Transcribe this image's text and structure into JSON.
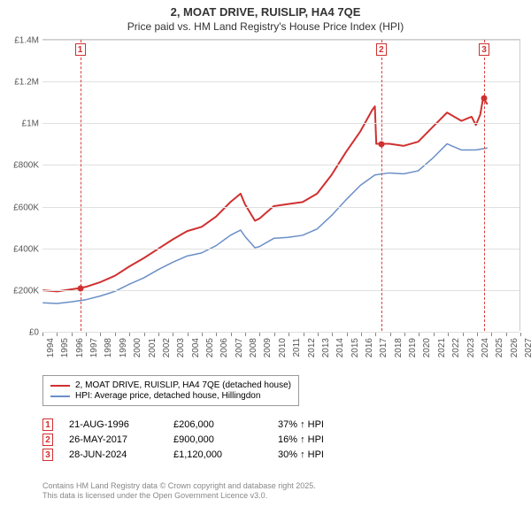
{
  "title": {
    "main": "2, MOAT DRIVE, RUISLIP, HA4 7QE",
    "sub": "Price paid vs. HM Land Registry's House Price Index (HPI)"
  },
  "chart": {
    "type": "line",
    "background_color": "#ffffff",
    "grid_color": "#e0e0e0",
    "border_color": "#cccccc",
    "y_axis": {
      "min": 0,
      "max": 1400000,
      "ticks": [
        {
          "v": 0,
          "label": "£0"
        },
        {
          "v": 200000,
          "label": "£200K"
        },
        {
          "v": 400000,
          "label": "£400K"
        },
        {
          "v": 600000,
          "label": "£600K"
        },
        {
          "v": 800000,
          "label": "£800K"
        },
        {
          "v": 1000000,
          "label": "£1M"
        },
        {
          "v": 1200000,
          "label": "£1.2M"
        },
        {
          "v": 1400000,
          "label": "£1.4M"
        }
      ],
      "label_fontsize": 10,
      "label_color": "#555555"
    },
    "x_axis": {
      "min": 1994,
      "max": 2027,
      "ticks": [
        1994,
        1995,
        1996,
        1997,
        1998,
        1999,
        2000,
        2001,
        2002,
        2003,
        2004,
        2005,
        2006,
        2007,
        2008,
        2009,
        2010,
        2011,
        2012,
        2013,
        2014,
        2015,
        2016,
        2017,
        2018,
        2019,
        2020,
        2021,
        2022,
        2023,
        2024,
        2025,
        2026,
        2027
      ],
      "label_fontsize": 10,
      "label_color": "#555555",
      "rotation": -90
    },
    "series": [
      {
        "name": "2, MOAT DRIVE, RUISLIP, HA4 7QE (detached house)",
        "color": "#d03030",
        "line_width": 2,
        "data": [
          [
            1994,
            195000
          ],
          [
            1995,
            190000
          ],
          [
            1996,
            200000
          ],
          [
            1996.6,
            206000
          ],
          [
            1997,
            212000
          ],
          [
            1998,
            235000
          ],
          [
            1999,
            265000
          ],
          [
            2000,
            310000
          ],
          [
            2001,
            350000
          ],
          [
            2002,
            395000
          ],
          [
            2003,
            440000
          ],
          [
            2004,
            480000
          ],
          [
            2005,
            500000
          ],
          [
            2006,
            550000
          ],
          [
            2007,
            620000
          ],
          [
            2007.7,
            660000
          ],
          [
            2008,
            610000
          ],
          [
            2008.7,
            530000
          ],
          [
            2009,
            540000
          ],
          [
            2010,
            600000
          ],
          [
            2011,
            610000
          ],
          [
            2012,
            620000
          ],
          [
            2013,
            660000
          ],
          [
            2014,
            750000
          ],
          [
            2015,
            860000
          ],
          [
            2016,
            960000
          ],
          [
            2016.8,
            1060000
          ],
          [
            2017,
            1080000
          ],
          [
            2017.1,
            900000
          ],
          [
            2017.4,
            900000
          ],
          [
            2018,
            900000
          ],
          [
            2019,
            890000
          ],
          [
            2020,
            910000
          ],
          [
            2021,
            980000
          ],
          [
            2022,
            1050000
          ],
          [
            2023,
            1010000
          ],
          [
            2023.7,
            1030000
          ],
          [
            2024,
            990000
          ],
          [
            2024.3,
            1040000
          ],
          [
            2024.5,
            1120000
          ],
          [
            2024.8,
            1090000
          ]
        ]
      },
      {
        "name": "HPI: Average price, detached house, Hillingdon",
        "color": "#6b8fc7",
        "line_width": 1.5,
        "data": [
          [
            1994,
            135000
          ],
          [
            1995,
            132000
          ],
          [
            1996,
            140000
          ],
          [
            1997,
            150000
          ],
          [
            1998,
            168000
          ],
          [
            1999,
            190000
          ],
          [
            2000,
            225000
          ],
          [
            2001,
            255000
          ],
          [
            2002,
            295000
          ],
          [
            2003,
            330000
          ],
          [
            2004,
            360000
          ],
          [
            2005,
            375000
          ],
          [
            2006,
            410000
          ],
          [
            2007,
            460000
          ],
          [
            2007.7,
            485000
          ],
          [
            2008,
            455000
          ],
          [
            2008.7,
            400000
          ],
          [
            2009,
            405000
          ],
          [
            2010,
            445000
          ],
          [
            2011,
            450000
          ],
          [
            2012,
            460000
          ],
          [
            2013,
            490000
          ],
          [
            2014,
            555000
          ],
          [
            2015,
            630000
          ],
          [
            2016,
            700000
          ],
          [
            2017,
            750000
          ],
          [
            2018,
            760000
          ],
          [
            2019,
            755000
          ],
          [
            2020,
            770000
          ],
          [
            2021,
            830000
          ],
          [
            2022,
            900000
          ],
          [
            2023,
            870000
          ],
          [
            2024,
            870000
          ],
          [
            2024.8,
            880000
          ]
        ]
      }
    ],
    "markers": [
      {
        "n": "1",
        "year": 1996.6,
        "value": 206000
      },
      {
        "n": "2",
        "year": 2017.4,
        "value": 900000
      },
      {
        "n": "3",
        "year": 2024.5,
        "value": 1120000
      }
    ],
    "marker_color": "#d03030",
    "dash_color": "#d94040"
  },
  "legend": {
    "items": [
      {
        "color": "#d03030",
        "label": "2, MOAT DRIVE, RUISLIP, HA4 7QE (detached house)"
      },
      {
        "color": "#6b8fc7",
        "label": "HPI: Average price, detached house, Hillingdon"
      }
    ]
  },
  "transactions": [
    {
      "n": "1",
      "date": "21-AUG-1996",
      "price": "£206,000",
      "pct": "37% ↑ HPI"
    },
    {
      "n": "2",
      "date": "26-MAY-2017",
      "price": "£900,000",
      "pct": "16% ↑ HPI"
    },
    {
      "n": "3",
      "date": "28-JUN-2024",
      "price": "£1,120,000",
      "pct": "30% ↑ HPI"
    }
  ],
  "footer": {
    "line1": "Contains HM Land Registry data © Crown copyright and database right 2025.",
    "line2": "This data is licensed under the Open Government Licence v3.0."
  }
}
